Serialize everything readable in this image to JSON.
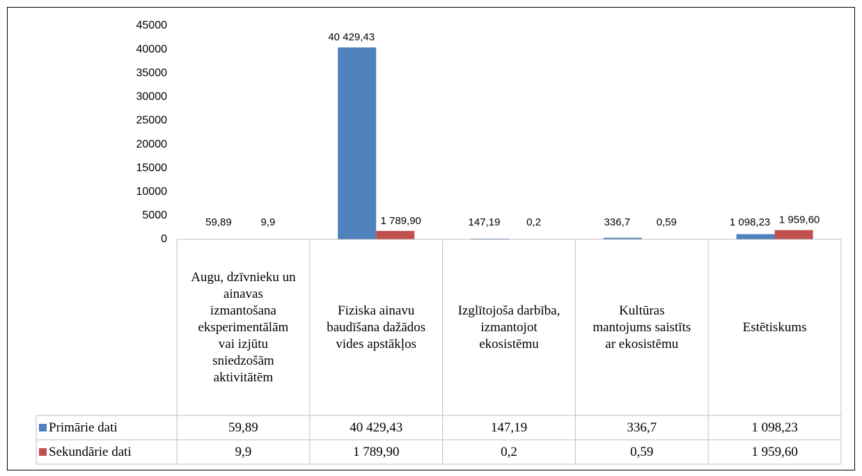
{
  "chart_data": {
    "type": "bar",
    "categories": [
      "Augu, dzīvnieku un ainavas izmantošana eksperimentālām vai izjūtu sniedzošām aktivitātēm",
      "Fiziska ainavu baudīšana dažādos vides apstākļos",
      "Izglītojoša darbība, izmantojot ekosistēmu",
      "Kultūras mantojums saistīts ar ekosistēmu",
      "Estētiskums"
    ],
    "series": [
      {
        "name": "Primārie dati",
        "color": "#4f81bd",
        "values": [
          59.89,
          40429.43,
          147.19,
          336.7,
          1098.23
        ],
        "value_labels": [
          "59,89",
          "40 429,43",
          "147,19",
          "336,7",
          "1 098,23"
        ]
      },
      {
        "name": "Sekundārie dati",
        "color": "#c0504d",
        "values": [
          9.9,
          1789.9,
          0.2,
          0.59,
          1959.6
        ],
        "value_labels": [
          "9,9",
          "1 789,90",
          "0,2",
          "0,59",
          "1 959,60"
        ]
      }
    ],
    "ylim": [
      0,
      45000
    ],
    "yticks": [
      0,
      5000,
      10000,
      15000,
      20000,
      25000,
      30000,
      35000,
      40000,
      45000
    ]
  }
}
